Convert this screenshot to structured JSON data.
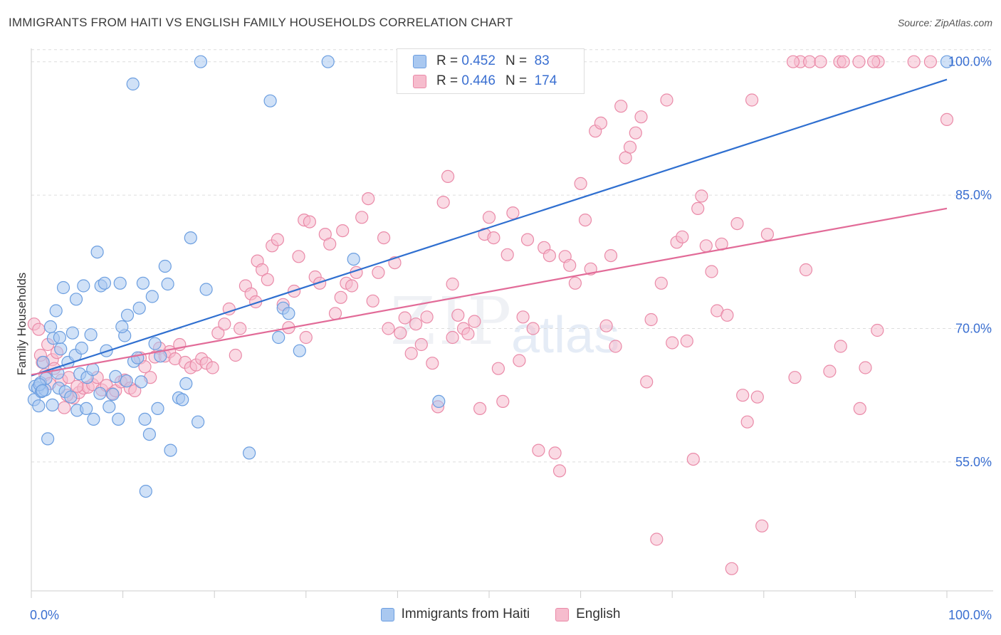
{
  "header": {
    "title": "IMMIGRANTS FROM HAITI VS ENGLISH FAMILY HOUSEHOLDS CORRELATION CHART",
    "source": "Source: ZipAtlas.com"
  },
  "watermark": {
    "zip": "ZIP",
    "atlas": "atlas"
  },
  "legend_top": [
    {
      "r_label": "R =",
      "r_value": "0.452",
      "n_label": "N =",
      "n_value": "83"
    },
    {
      "r_label": "R =",
      "r_value": "0.446",
      "n_label": "N =",
      "n_value": "174"
    }
  ],
  "legend_bottom": [
    {
      "label": "Immigrants from Haiti"
    },
    {
      "label": "English"
    }
  ],
  "colors": {
    "blue_fill": "#a9c8f0",
    "blue_stroke": "#6b9ee0",
    "blue_line": "#2f6fd0",
    "pink_fill": "#f6bccd",
    "pink_stroke": "#ea8aa8",
    "pink_line": "#e26b98",
    "tick_label": "#3a6fd1",
    "grid": "#dddddd"
  },
  "chart_data": {
    "type": "scatter",
    "title": "IMMIGRANTS FROM HAITI VS ENGLISH FAMILY HOUSEHOLDS CORRELATION CHART",
    "xlabel": "",
    "ylabel": "Family Households",
    "xlim": [
      0,
      100
    ],
    "ylim": [
      40.5,
      101.5
    ],
    "x_tick_labels": [
      "0.0%",
      "100.0%"
    ],
    "y_ticks": [
      55,
      70,
      85,
      100
    ],
    "y_tick_labels": [
      "55.0%",
      "70.0%",
      "85.0%",
      "100.0%"
    ],
    "grid": true,
    "legend_position": "top-center",
    "series": [
      {
        "name": "Immigrants from Haiti",
        "trend": {
          "x": [
            0,
            100
          ],
          "y": [
            64.7,
            98.0
          ]
        },
        "points": [
          [
            0.3,
            62.0
          ],
          [
            0.4,
            63.5
          ],
          [
            0.7,
            63.3
          ],
          [
            0.8,
            61.3
          ],
          [
            1.0,
            63.9
          ],
          [
            1.1,
            62.9
          ],
          [
            1.3,
            66.2
          ],
          [
            1.5,
            63.1
          ],
          [
            1.8,
            57.6
          ],
          [
            2.1,
            70.2
          ],
          [
            2.4,
            68.9
          ],
          [
            2.7,
            72.0
          ],
          [
            3.0,
            63.3
          ],
          [
            3.2,
            67.7
          ],
          [
            3.5,
            74.6
          ],
          [
            3.7,
            62.9
          ],
          [
            4.0,
            66.2
          ],
          [
            4.3,
            62.3
          ],
          [
            4.5,
            69.5
          ],
          [
            4.9,
            73.3
          ],
          [
            5.0,
            60.8
          ],
          [
            5.3,
            64.9
          ],
          [
            5.7,
            74.8
          ],
          [
            6.1,
            64.5
          ],
          [
            6.5,
            69.3
          ],
          [
            6.8,
            59.8
          ],
          [
            7.2,
            78.6
          ],
          [
            7.6,
            74.8
          ],
          [
            8.2,
            67.5
          ],
          [
            8.5,
            61.2
          ],
          [
            8.9,
            62.6
          ],
          [
            9.2,
            64.6
          ],
          [
            9.5,
            59.8
          ],
          [
            10.2,
            69.2
          ],
          [
            10.4,
            64.1
          ],
          [
            11.2,
            66.3
          ],
          [
            11.8,
            72.3
          ],
          [
            12.2,
            75.1
          ],
          [
            12.4,
            59.8
          ],
          [
            12.9,
            58.1
          ],
          [
            13.2,
            73.6
          ],
          [
            13.8,
            61.0
          ],
          [
            14.1,
            66.9
          ],
          [
            14.6,
            77.0
          ],
          [
            15.2,
            56.3
          ],
          [
            16.1,
            62.2
          ],
          [
            16.9,
            63.8
          ],
          [
            17.4,
            80.2
          ],
          [
            18.2,
            59.5
          ],
          [
            19.1,
            74.4
          ],
          [
            18.5,
            100.0
          ],
          [
            32.4,
            100.0
          ],
          [
            100.0,
            100.0
          ],
          [
            11.1,
            97.5
          ],
          [
            26.1,
            95.6
          ],
          [
            23.8,
            56.0
          ],
          [
            12.5,
            51.7
          ],
          [
            27.5,
            72.3
          ],
          [
            28.1,
            71.7
          ],
          [
            29.3,
            67.5
          ],
          [
            35.2,
            77.8
          ],
          [
            44.5,
            61.8
          ],
          [
            9.7,
            75.1
          ],
          [
            11.6,
            66.7
          ],
          [
            10.5,
            71.5
          ],
          [
            4.8,
            67.0
          ],
          [
            3.1,
            69.0
          ],
          [
            2.3,
            61.4
          ],
          [
            1.6,
            64.4
          ],
          [
            0.9,
            63.7
          ],
          [
            6.7,
            65.4
          ],
          [
            7.5,
            62.7
          ],
          [
            5.5,
            67.8
          ],
          [
            9.9,
            70.2
          ],
          [
            13.5,
            68.3
          ],
          [
            14.9,
            75.0
          ],
          [
            8.0,
            75.1
          ],
          [
            12.0,
            64.0
          ],
          [
            16.5,
            62.0
          ],
          [
            27.0,
            69.0
          ],
          [
            1.2,
            63.0
          ],
          [
            2.9,
            65.0
          ],
          [
            6.0,
            61.0
          ]
        ]
      },
      {
        "name": "English",
        "trend": {
          "x": [
            0,
            100
          ],
          "y": [
            64.8,
            83.5
          ]
        },
        "points": [
          [
            0.3,
            70.5
          ],
          [
            0.8,
            69.9
          ],
          [
            1.2,
            66.2
          ],
          [
            1.8,
            68.2
          ],
          [
            2.3,
            66.5
          ],
          [
            2.8,
            67.3
          ],
          [
            3.3,
            64.2
          ],
          [
            3.6,
            61.1
          ],
          [
            4.1,
            64.5
          ],
          [
            4.6,
            62.2
          ],
          [
            5.2,
            62.8
          ],
          [
            5.7,
            63.3
          ],
          [
            6.2,
            63.4
          ],
          [
            6.7,
            63.7
          ],
          [
            7.2,
            64.5
          ],
          [
            7.7,
            63.1
          ],
          [
            8.2,
            63.6
          ],
          [
            8.8,
            62.7
          ],
          [
            9.2,
            63.0
          ],
          [
            9.8,
            64.0
          ],
          [
            10.2,
            64.2
          ],
          [
            10.8,
            63.3
          ],
          [
            11.3,
            63.0
          ],
          [
            11.9,
            66.7
          ],
          [
            12.4,
            65.7
          ],
          [
            13.0,
            64.5
          ],
          [
            13.5,
            66.8
          ],
          [
            14.0,
            67.8
          ],
          [
            14.6,
            66.9
          ],
          [
            15.1,
            67.4
          ],
          [
            15.7,
            66.6
          ],
          [
            16.2,
            68.2
          ],
          [
            16.8,
            66.2
          ],
          [
            17.4,
            65.6
          ],
          [
            18.0,
            65.9
          ],
          [
            18.6,
            66.6
          ],
          [
            19.1,
            66.1
          ],
          [
            19.8,
            65.6
          ],
          [
            20.4,
            69.5
          ],
          [
            21.1,
            70.5
          ],
          [
            21.6,
            72.2
          ],
          [
            22.3,
            67.0
          ],
          [
            22.8,
            70.0
          ],
          [
            23.4,
            74.8
          ],
          [
            24.0,
            73.9
          ],
          [
            24.7,
            77.6
          ],
          [
            25.2,
            76.6
          ],
          [
            25.8,
            75.5
          ],
          [
            26.3,
            79.3
          ],
          [
            26.9,
            80.0
          ],
          [
            27.5,
            72.7
          ],
          [
            28.1,
            70.1
          ],
          [
            28.7,
            74.2
          ],
          [
            29.2,
            78.1
          ],
          [
            29.8,
            82.2
          ],
          [
            30.4,
            82.0
          ],
          [
            31.0,
            75.8
          ],
          [
            31.5,
            75.1
          ],
          [
            32.1,
            80.6
          ],
          [
            32.6,
            79.5
          ],
          [
            33.2,
            71.7
          ],
          [
            33.8,
            73.5
          ],
          [
            34.4,
            75.1
          ],
          [
            35.0,
            74.8
          ],
          [
            35.5,
            76.3
          ],
          [
            36.1,
            82.5
          ],
          [
            36.8,
            84.6
          ],
          [
            37.3,
            73.1
          ],
          [
            37.9,
            76.3
          ],
          [
            38.5,
            80.2
          ],
          [
            39.0,
            70.0
          ],
          [
            39.7,
            77.4
          ],
          [
            40.3,
            69.5
          ],
          [
            40.8,
            71.2
          ],
          [
            41.5,
            67.2
          ],
          [
            42.0,
            70.5
          ],
          [
            42.6,
            68.2
          ],
          [
            43.2,
            71.3
          ],
          [
            43.8,
            66.1
          ],
          [
            44.4,
            61.2
          ],
          [
            45.0,
            84.2
          ],
          [
            45.5,
            87.1
          ],
          [
            46.0,
            75.0
          ],
          [
            46.6,
            71.5
          ],
          [
            47.2,
            70.0
          ],
          [
            47.7,
            69.4
          ],
          [
            48.4,
            70.8
          ],
          [
            49.0,
            61.0
          ],
          [
            49.5,
            80.6
          ],
          [
            50.0,
            82.5
          ],
          [
            50.5,
            80.2
          ],
          [
            51.0,
            65.5
          ],
          [
            51.5,
            61.8
          ],
          [
            52.0,
            78.3
          ],
          [
            52.6,
            83.0
          ],
          [
            53.3,
            66.4
          ],
          [
            53.7,
            71.3
          ],
          [
            54.2,
            80.0
          ],
          [
            54.8,
            70.0
          ],
          [
            55.4,
            56.3
          ],
          [
            56.0,
            79.1
          ],
          [
            56.6,
            78.2
          ],
          [
            57.2,
            56.0
          ],
          [
            57.7,
            54.0
          ],
          [
            58.3,
            78.1
          ],
          [
            58.8,
            77.1
          ],
          [
            59.4,
            75.1
          ],
          [
            60.0,
            86.3
          ],
          [
            60.5,
            82.2
          ],
          [
            61.1,
            76.7
          ],
          [
            61.6,
            92.2
          ],
          [
            62.2,
            93.1
          ],
          [
            62.8,
            70.3
          ],
          [
            63.3,
            78.2
          ],
          [
            63.8,
            68.0
          ],
          [
            64.4,
            95.0
          ],
          [
            64.9,
            89.2
          ],
          [
            65.4,
            90.4
          ],
          [
            66.0,
            92.0
          ],
          [
            66.6,
            93.8
          ],
          [
            67.2,
            64.0
          ],
          [
            67.7,
            71.0
          ],
          [
            68.3,
            46.3
          ],
          [
            68.8,
            75.1
          ],
          [
            69.4,
            95.7
          ],
          [
            70.0,
            68.4
          ],
          [
            70.5,
            79.7
          ],
          [
            71.1,
            80.3
          ],
          [
            71.6,
            68.6
          ],
          [
            72.3,
            55.3
          ],
          [
            72.8,
            83.5
          ],
          [
            73.2,
            84.9
          ],
          [
            73.7,
            79.3
          ],
          [
            74.3,
            76.4
          ],
          [
            74.9,
            72.0
          ],
          [
            75.4,
            79.5
          ],
          [
            76.0,
            71.5
          ],
          [
            76.5,
            43.0
          ],
          [
            77.1,
            81.8
          ],
          [
            77.7,
            62.5
          ],
          [
            78.2,
            59.5
          ],
          [
            78.7,
            95.7
          ],
          [
            79.3,
            62.3
          ],
          [
            79.8,
            47.8
          ],
          [
            80.4,
            80.6
          ],
          [
            83.4,
            64.5
          ],
          [
            84.6,
            76.6
          ],
          [
            87.2,
            65.2
          ],
          [
            88.4,
            68.0
          ],
          [
            90.5,
            61.0
          ],
          [
            91.1,
            65.6
          ],
          [
            92.4,
            69.8
          ],
          [
            100.0,
            93.5
          ],
          [
            84.0,
            100.0
          ],
          [
            85.0,
            100.0
          ],
          [
            86.2,
            100.0
          ],
          [
            88.3,
            100.0
          ],
          [
            90.4,
            100.0
          ],
          [
            92.5,
            100.0
          ],
          [
            96.4,
            100.0
          ],
          [
            98.2,
            100.0
          ],
          [
            88.7,
            100.0
          ],
          [
            83.2,
            100.0
          ],
          [
            92.0,
            100.0
          ],
          [
            1.0,
            67.0
          ],
          [
            1.5,
            64.8
          ],
          [
            2.5,
            65.5
          ],
          [
            2.0,
            63.8
          ],
          [
            3.9,
            62.5
          ],
          [
            5.0,
            63.5
          ],
          [
            24.5,
            73.0
          ],
          [
            30.0,
            69.0
          ],
          [
            34.0,
            81.0
          ],
          [
            46.0,
            69.0
          ]
        ]
      }
    ]
  }
}
